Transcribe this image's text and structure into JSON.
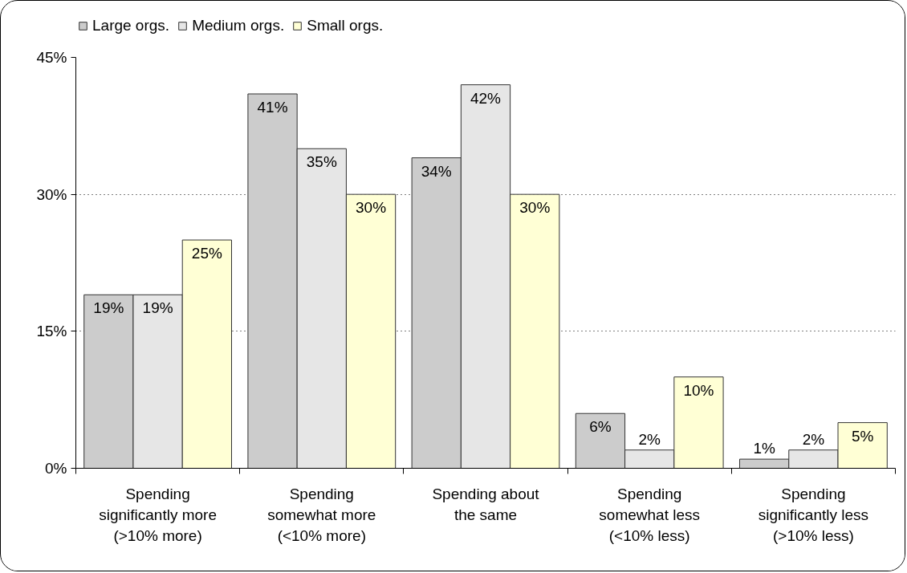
{
  "chart_data": {
    "type": "bar",
    "categories": [
      "Spending\nsignificantly more\n(>10% more)",
      "Spending\nsomewhat more\n(<10% more)",
      "Spending about\nthe same",
      "Spending\nsomewhat less\n(<10% less)",
      "Spending\nsignificantly less\n(>10% less)"
    ],
    "series": [
      {
        "name": "Large orgs.",
        "color": "#cccccc",
        "values": [
          19,
          41,
          34,
          6,
          1
        ],
        "value_labels": [
          "19%",
          "41%",
          "34%",
          "6%",
          "1%"
        ]
      },
      {
        "name": "Medium orgs.",
        "color": "#e6e6e6",
        "values": [
          19,
          35,
          42,
          2,
          2
        ],
        "value_labels": [
          "19%",
          "35%",
          "42%",
          "2%",
          "2%"
        ]
      },
      {
        "name": "Small orgs.",
        "color": "#ffffd5",
        "values": [
          25,
          30,
          30,
          10,
          5
        ],
        "value_labels": [
          "25%",
          "30%",
          "30%",
          "10%",
          "5%"
        ]
      }
    ],
    "ylim": [
      0,
      45
    ],
    "yticks": [
      {
        "value": 0,
        "label": "0%"
      },
      {
        "value": 15,
        "label": "15%"
      },
      {
        "value": 30,
        "label": "30%"
      },
      {
        "value": 45,
        "label": "45%"
      }
    ],
    "grid": "y",
    "legend": "top left"
  }
}
